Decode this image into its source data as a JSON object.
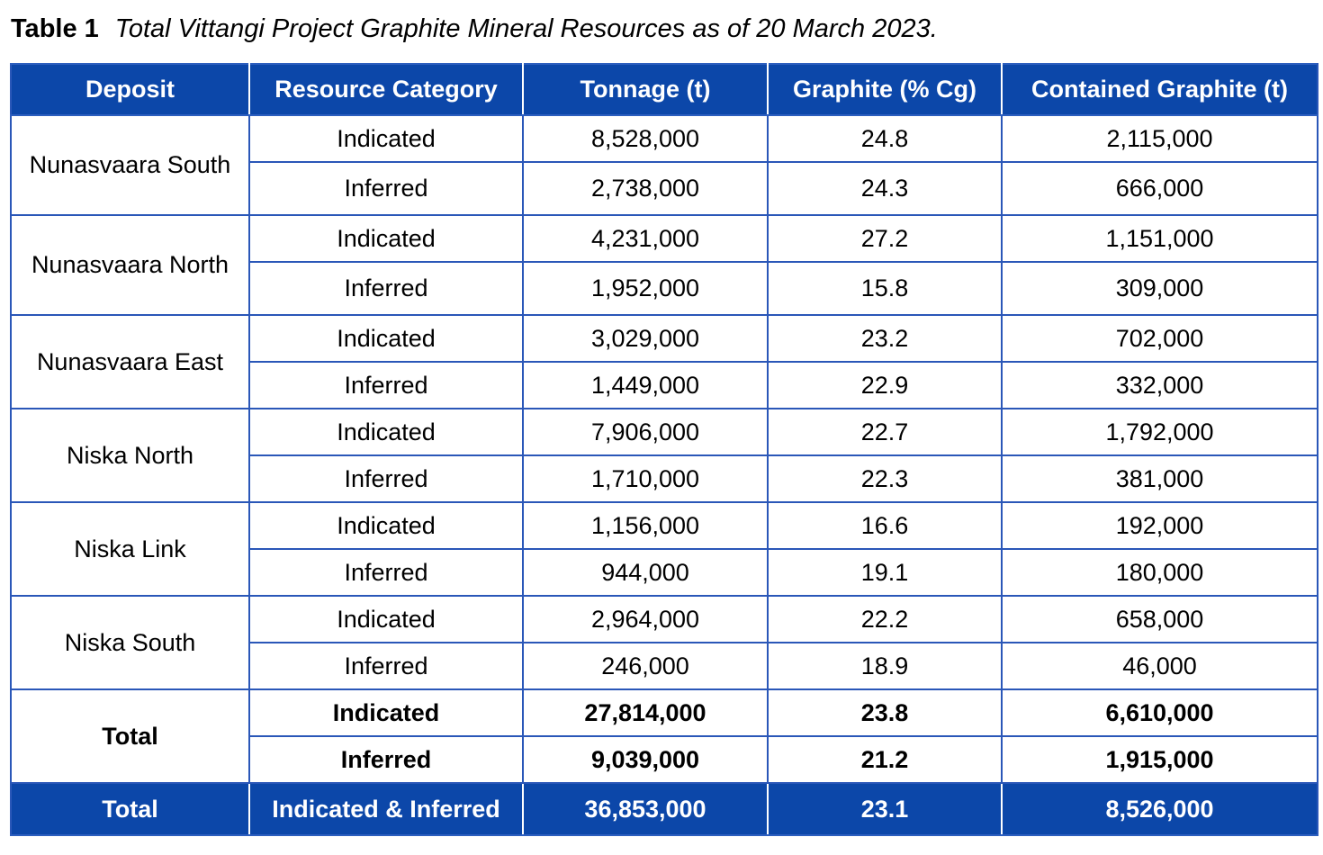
{
  "caption": {
    "label": "Table 1",
    "title": "Total Vittangi Project Graphite Mineral Resources as of 20 March 2023."
  },
  "table": {
    "headers": [
      "Deposit",
      "Resource Category",
      "Tonnage (t)",
      "Graphite (% Cg)",
      "Contained Graphite (t)"
    ],
    "groups": [
      {
        "deposit": "Nunasvaara South",
        "rows": [
          {
            "category": "Indicated",
            "tonnage": "8,528,000",
            "graphite": "24.8",
            "contained": "2,115,000"
          },
          {
            "category": "Inferred",
            "tonnage": "2,738,000",
            "graphite": "24.3",
            "contained": "666,000"
          }
        ]
      },
      {
        "deposit": "Nunasvaara North",
        "rows": [
          {
            "category": "Indicated",
            "tonnage": "4,231,000",
            "graphite": "27.2",
            "contained": "1,151,000"
          },
          {
            "category": "Inferred",
            "tonnage": "1,952,000",
            "graphite": "15.8",
            "contained": "309,000"
          }
        ]
      },
      {
        "deposit": "Nunasvaara East",
        "rows": [
          {
            "category": "Indicated",
            "tonnage": "3,029,000",
            "graphite": "23.2",
            "contained": "702,000"
          },
          {
            "category": "Inferred",
            "tonnage": "1,449,000",
            "graphite": "22.9",
            "contained": "332,000"
          }
        ]
      },
      {
        "deposit": "Niska North",
        "rows": [
          {
            "category": "Indicated",
            "tonnage": "7,906,000",
            "graphite": "22.7",
            "contained": "1,792,000"
          },
          {
            "category": "Inferred",
            "tonnage": "1,710,000",
            "graphite": "22.3",
            "contained": "381,000"
          }
        ]
      },
      {
        "deposit": "Niska Link",
        "rows": [
          {
            "category": "Indicated",
            "tonnage": "1,156,000",
            "graphite": "16.6",
            "contained": "192,000"
          },
          {
            "category": "Inferred",
            "tonnage": "944,000",
            "graphite": "19.1",
            "contained": "180,000"
          }
        ]
      },
      {
        "deposit": "Niska South",
        "rows": [
          {
            "category": "Indicated",
            "tonnage": "2,964,000",
            "graphite": "22.2",
            "contained": "658,000"
          },
          {
            "category": "Inferred",
            "tonnage": "246,000",
            "graphite": "18.9",
            "contained": "46,000"
          }
        ]
      },
      {
        "deposit": "Total",
        "rows": [
          {
            "category": "Indicated",
            "tonnage": "27,814,000",
            "graphite": "23.8",
            "contained": "6,610,000"
          },
          {
            "category": "Inferred",
            "tonnage": "9,039,000",
            "graphite": "21.2",
            "contained": "1,915,000"
          }
        ]
      }
    ],
    "grand_total": {
      "deposit": "Total",
      "category": "Indicated & Inferred",
      "tonnage": "36,853,000",
      "graphite": "23.1",
      "contained": "8,526,000"
    }
  },
  "colors": {
    "header_background": "#0c47a9",
    "header_text": "#ffffff",
    "grid_line": "#2a57b8"
  }
}
